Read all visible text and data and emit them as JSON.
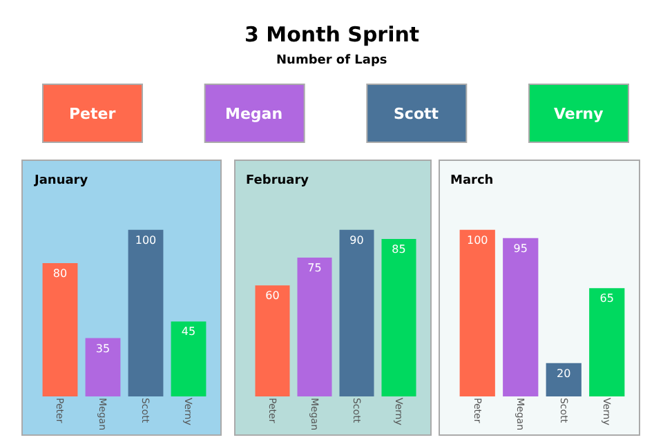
{
  "chart_data": [
    {
      "type": "other",
      "title": "3 Month Sprint",
      "subtitle": "Number of Laps",
      "categories": [
        "Peter",
        "Megan",
        "Scott",
        "Verny"
      ],
      "colors": [
        "#ff6a4d",
        "#b068e0",
        "#4a7399",
        "#00d95f"
      ]
    },
    {
      "type": "bar",
      "title": "January",
      "categories": [
        "Peter",
        "Megan",
        "Scott",
        "Verny"
      ],
      "values": [
        80,
        35,
        100,
        45
      ],
      "colors": [
        "#ff6a4d",
        "#b068e0",
        "#4a7399",
        "#00d95f"
      ],
      "data_labels": true,
      "tick_labels": "x"
    },
    {
      "type": "bar",
      "title": "February",
      "categories": [
        "Peter",
        "Megan",
        "Scott",
        "Verny"
      ],
      "values": [
        60,
        75,
        90,
        85
      ],
      "colors": [
        "#ff6a4d",
        "#b068e0",
        "#4a7399",
        "#00d95f"
      ],
      "data_labels": true,
      "tick_labels": "x"
    },
    {
      "type": "bar",
      "title": "March",
      "categories": [
        "Peter",
        "Megan",
        "Scott",
        "Verny"
      ],
      "values": [
        100,
        95,
        20,
        65
      ],
      "colors": [
        "#ff6a4d",
        "#b068e0",
        "#4a7399",
        "#00d95f"
      ],
      "data_labels": true,
      "tick_labels": "x"
    }
  ]
}
